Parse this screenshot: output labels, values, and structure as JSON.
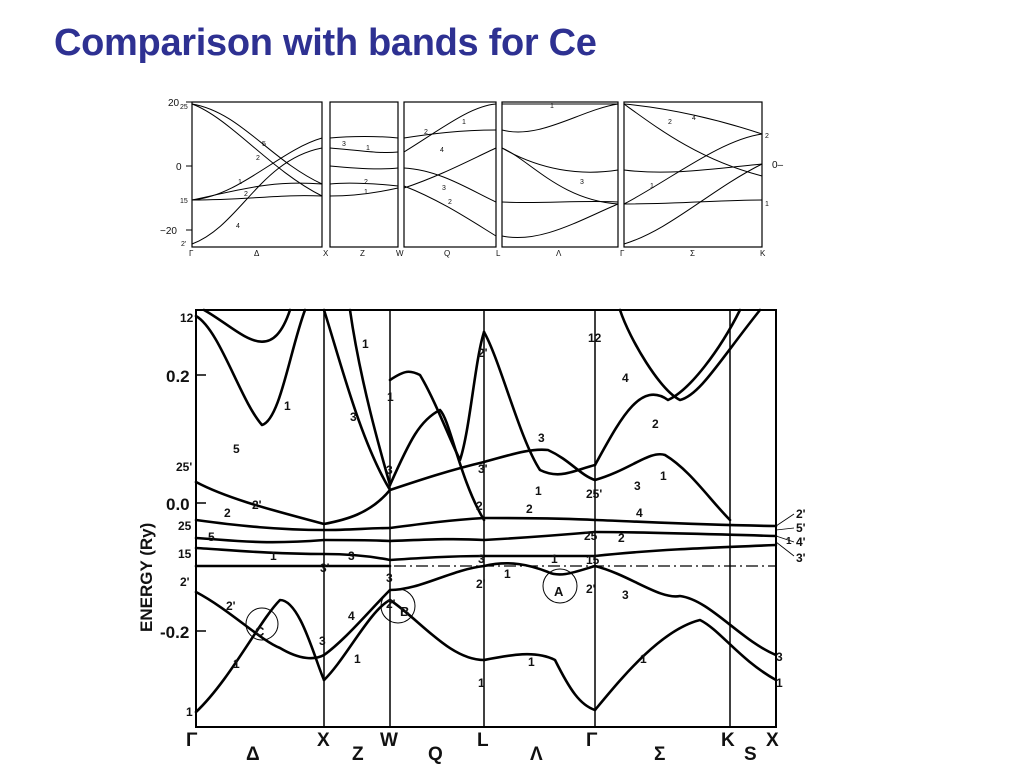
{
  "title": "Comparison with bands for Ce",
  "top_diagram": {
    "y_tick_labels": [
      "20",
      "0",
      "−20"
    ],
    "left_rep_labels": [
      "25",
      "15",
      "2'"
    ],
    "right_zero_label": "0–",
    "k_labels": [
      "Γ",
      "Δ",
      "X",
      "Z",
      "W",
      "Q",
      "L",
      "Λ",
      "Γ",
      "Σ",
      "K"
    ],
    "band_labels": [
      "5",
      "2",
      "1",
      "2",
      "4",
      "3",
      "1",
      "2",
      "1",
      "2",
      "1",
      "4",
      "3",
      "2",
      "1",
      "3",
      "4",
      "2",
      "1",
      "2",
      "1"
    ]
  },
  "bottom_diagram": {
    "y_axis_label": "ENERGY (Ry)",
    "y_tick_labels": [
      "0.2",
      "0.0",
      "-0.2"
    ],
    "k_labels": [
      "Γ",
      "Δ",
      "X",
      "Z",
      "W",
      "Q",
      "L",
      "Λ",
      "Γ",
      "Σ",
      "K",
      "S",
      "X"
    ],
    "left_rep_labels": [
      "12",
      "25'",
      "25",
      "15",
      "2'",
      "1"
    ],
    "right_rep_labels": [
      "2'",
      "5'",
      "4'",
      "1",
      "3'"
    ],
    "band_labels": [
      "1",
      "5",
      "1",
      "3",
      "1",
      "3",
      "2'",
      "3'",
      "12",
      "4",
      "2",
      "3",
      "1",
      "25'",
      "3",
      "1",
      "2'",
      "2",
      "2",
      "2",
      "4",
      "5",
      "1",
      "3",
      "3'",
      "3",
      "3",
      "25",
      "2",
      "15",
      "1",
      "1",
      "2'",
      "2'",
      "3",
      "2'",
      "4",
      "3",
      "1",
      "1",
      "1",
      "1",
      "3",
      "1",
      "1",
      "2'"
    ],
    "circled_points": [
      "C",
      "B",
      "A"
    ]
  }
}
